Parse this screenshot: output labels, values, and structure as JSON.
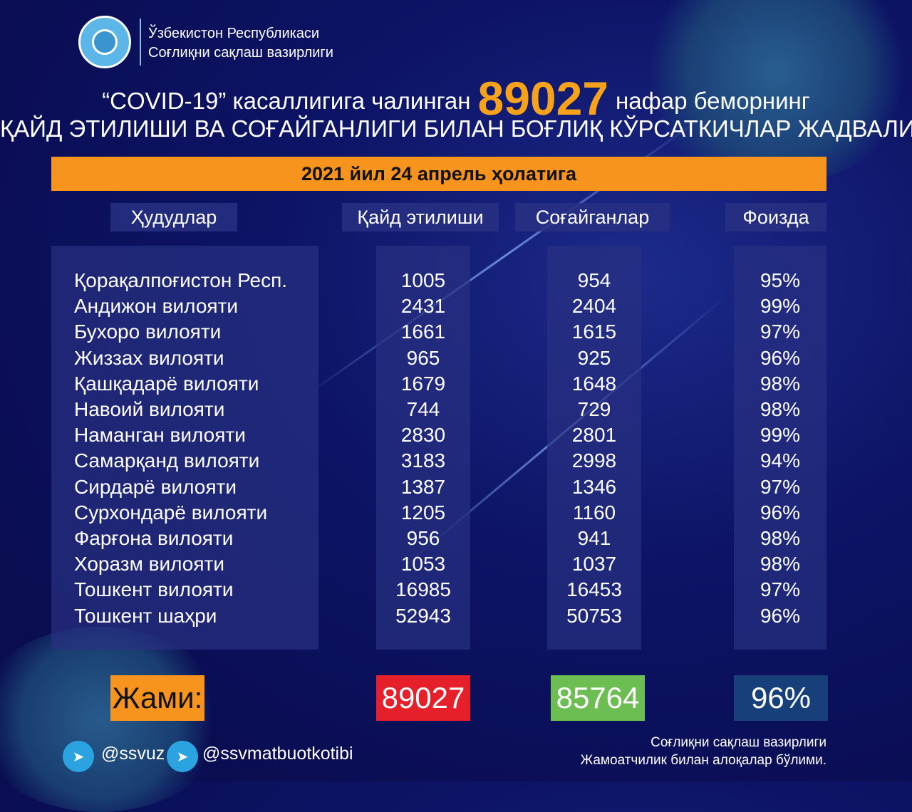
{
  "header": {
    "org_line1": "Ўзбекистон Республикаси",
    "org_line2": "Соғлиқни сақлаш вазирлиги",
    "title_pre": "“COVID-19” касаллигига чалинган",
    "title_number": "89027",
    "title_post": "нафар беморнинг",
    "title_line2": "ҚАЙД ЭТИЛИШИ ВА СОҒАЙГАНЛИГИ БИЛАН БОҒЛИҚ КЎРСАТКИЧЛАР ЖАДВАЛИ",
    "date": "2021 йил 24 апрель ҳолатига"
  },
  "table": {
    "columns": [
      "Ҳудудлар",
      "Қайд этилиши",
      "Соғайганлар",
      "Фоизда"
    ],
    "rows": [
      [
        "Қорақалпоғистон Респ.",
        "1005",
        "954",
        "95%"
      ],
      [
        "Андижон вилояти",
        "2431",
        "2404",
        "99%"
      ],
      [
        "Бухоро вилояти",
        "1661",
        "1615",
        "97%"
      ],
      [
        "Жиззах вилояти",
        "965",
        "925",
        "96%"
      ],
      [
        "Қашқадарё вилояти",
        "1679",
        "1648",
        "98%"
      ],
      [
        "Навоий вилояти",
        "744",
        "729",
        "98%"
      ],
      [
        "Наманган вилояти",
        "2830",
        "2801",
        "99%"
      ],
      [
        "Самарқанд вилояти",
        "3183",
        "2998",
        "94%"
      ],
      [
        "Сирдарё вилояти",
        "1387",
        "1346",
        "97%"
      ],
      [
        "Сурхондарё вилояти",
        "1205",
        "1160",
        "96%"
      ],
      [
        "Фарғона вилояти",
        "956",
        "941",
        "98%"
      ],
      [
        "Хоразм вилояти",
        "1053",
        "1037",
        "98%"
      ],
      [
        "Тошкент вилояти",
        "16985",
        "16453",
        "97%"
      ],
      [
        "Тошкент шаҳри",
        "52943",
        "50753",
        "96%"
      ]
    ],
    "total_label": "Жами:",
    "total_registered": "89027",
    "total_recovered": "85764",
    "total_percent": "96%"
  },
  "footer": {
    "telegram1": "@ssvuz",
    "telegram2": "@ssvmatbuotkotibi",
    "credit_line1": "Соғлиқни сақлаш вазирлиги",
    "credit_line2": "Жамоатчилик билан алоқалар бўлими."
  },
  "colors": {
    "background": "#0a0d52",
    "orange": "#f7941d",
    "red": "#e5202a",
    "green": "#6cbd52",
    "navy": "#17407a",
    "telegram": "#2aa3e0"
  }
}
